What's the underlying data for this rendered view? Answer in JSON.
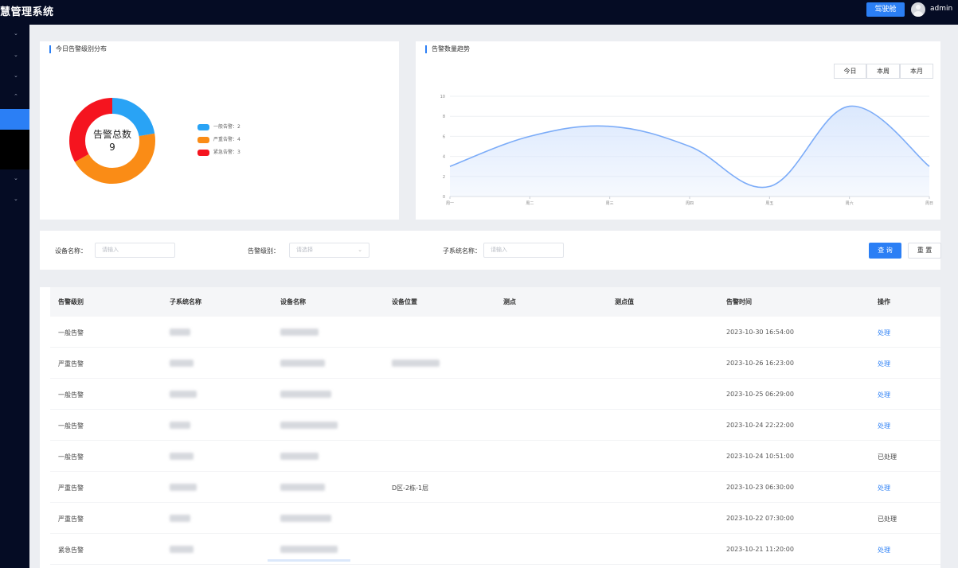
{
  "header": {
    "title": "慧管理系统",
    "button_label": "驾驶舱",
    "user": "admin"
  },
  "sidebar": {
    "arrows": [
      "⌄",
      "⌄",
      "⌄",
      "⌃",
      "⌄",
      "⌄"
    ]
  },
  "donut_card": {
    "title": "今日告警级别分布",
    "center_label": "告警总数",
    "center_value": "9",
    "legend": [
      {
        "label": "一般告警：2",
        "value": 2,
        "color": "#29a3f5"
      },
      {
        "label": "严重告警：4",
        "value": 4,
        "color": "#fa8c16"
      },
      {
        "label": "紧急告警：3",
        "value": 3,
        "color": "#f5141f"
      }
    ]
  },
  "trend_card": {
    "title": "告警数量趋势",
    "range_buttons": [
      "今日",
      "本周",
      "本月"
    ],
    "chart_data": {
      "type": "area",
      "categories": [
        "周一",
        "周二",
        "周三",
        "周四",
        "周五",
        "周六",
        "周日"
      ],
      "values": [
        3,
        6,
        7,
        5,
        1,
        9,
        3
      ],
      "ylim": [
        0,
        10
      ],
      "yticks": [
        "0",
        "2",
        "4",
        "6",
        "8",
        "10"
      ],
      "line_color": "#7cacf8",
      "fill_color": "#dbe8fd"
    }
  },
  "filter": {
    "device_label": "设备名称：",
    "device_placeholder": "请输入",
    "level_label": "告警级别：",
    "level_placeholder": "请选择",
    "subsystem_label": "子系统名称：",
    "subsystem_placeholder": "请输入",
    "query_button": "查 询",
    "reset_button": "重 置"
  },
  "table": {
    "columns": [
      "告警级别",
      "子系统名称",
      "设备名称",
      "设备位置",
      "测点",
      "测点值",
      "告警时间",
      "操作"
    ],
    "rows": [
      {
        "level": "一般告警",
        "location": "",
        "time": "2023-10-30 16:54:00",
        "op": "处理",
        "done": false
      },
      {
        "level": "严重告警",
        "location": "",
        "time": "2023-10-26 16:23:00",
        "op": "处理",
        "done": false
      },
      {
        "level": "一般告警",
        "location": "",
        "time": "2023-10-25 06:29:00",
        "op": "处理",
        "done": false
      },
      {
        "level": "一般告警",
        "location": "",
        "time": "2023-10-24 22:22:00",
        "op": "处理",
        "done": false
      },
      {
        "level": "一般告警",
        "location": "",
        "time": "2023-10-24 10:51:00",
        "op": "已处理",
        "done": true
      },
      {
        "level": "严重告警",
        "location": "D区-2栋-1层",
        "time": "2023-10-23 06:30:00",
        "op": "处理",
        "done": false
      },
      {
        "level": "严重告警",
        "location": "",
        "time": "2023-10-22 07:30:00",
        "op": "已处理",
        "done": true
      },
      {
        "level": "紧急告警",
        "location": "",
        "time": "2023-10-21 11:20:00",
        "op": "处理",
        "done": false
      }
    ]
  }
}
